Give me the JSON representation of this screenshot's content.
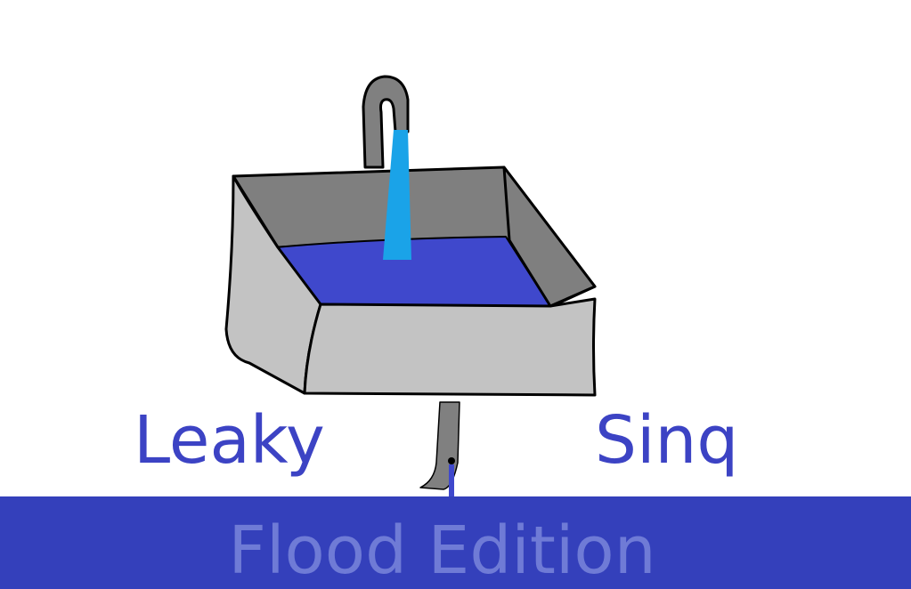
{
  "title": {
    "left_word": "Leaky",
    "right_word": "Sinq"
  },
  "subtitle": "Flood Edition",
  "colors": {
    "background": "#ffffff",
    "title_text": "#3c43c4",
    "flood_band": "#3440bb",
    "subtitle_text": "#6f7bd6",
    "water": "#3f48cc",
    "tap_stream": "#1aa3e8",
    "sink_body": "#c3c3c3",
    "sink_inner": "#7f7f7f",
    "pipe": "#808080",
    "outline": "#000000"
  },
  "icons": [
    "sink-icon",
    "faucet-icon",
    "water-stream-icon",
    "drain-pipe-icon",
    "leak-drip-icon"
  ]
}
